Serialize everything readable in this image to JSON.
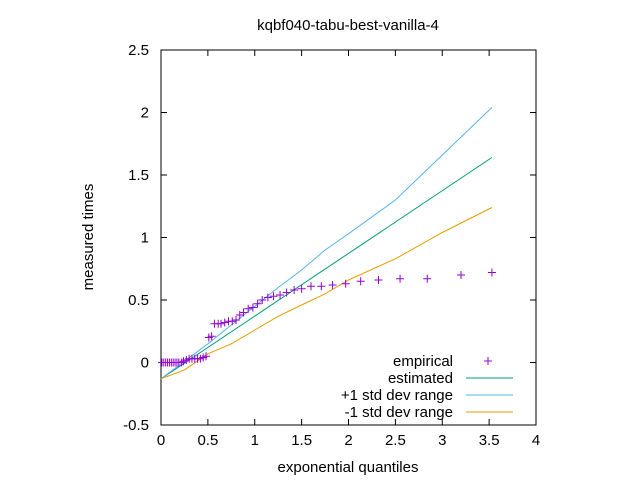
{
  "chart_data": {
    "type": "scatter",
    "title": "kqbf040-tabu-best-vanilla-4",
    "xlabel": "exponential quantiles",
    "ylabel": "measured times",
    "xlim": [
      0,
      4
    ],
    "ylim": [
      -0.5,
      2.5
    ],
    "x_ticks": [
      "0",
      "0.5",
      "1",
      "1.5",
      "2",
      "2.5",
      "3",
      "3.5",
      "4"
    ],
    "y_ticks": [
      "-0.5",
      "0",
      "0.5",
      "1",
      "1.5",
      "2",
      "2.5"
    ],
    "grid": false,
    "legend_position": "bottom-right",
    "series": [
      {
        "name": "empirical",
        "style": "points",
        "color": "#9400d3",
        "points": [
          [
            0.01,
            0.0
          ],
          [
            0.03,
            0.0
          ],
          [
            0.05,
            0.0
          ],
          [
            0.07,
            0.0
          ],
          [
            0.09,
            0.0
          ],
          [
            0.11,
            0.0
          ],
          [
            0.13,
            0.0
          ],
          [
            0.15,
            0.0
          ],
          [
            0.17,
            0.0
          ],
          [
            0.19,
            0.0
          ],
          [
            0.22,
            0.0
          ],
          [
            0.24,
            0.01
          ],
          [
            0.27,
            0.02
          ],
          [
            0.3,
            0.03
          ],
          [
            0.33,
            0.03
          ],
          [
            0.36,
            0.03
          ],
          [
            0.39,
            0.03
          ],
          [
            0.42,
            0.03
          ],
          [
            0.45,
            0.04
          ],
          [
            0.48,
            0.05
          ],
          [
            0.51,
            0.2
          ],
          [
            0.54,
            0.21
          ],
          [
            0.57,
            0.31
          ],
          [
            0.61,
            0.31
          ],
          [
            0.64,
            0.31
          ],
          [
            0.68,
            0.32
          ],
          [
            0.72,
            0.33
          ],
          [
            0.76,
            0.33
          ],
          [
            0.8,
            0.34
          ],
          [
            0.84,
            0.38
          ],
          [
            0.88,
            0.4
          ],
          [
            0.93,
            0.43
          ],
          [
            0.98,
            0.44
          ],
          [
            1.03,
            0.47
          ],
          [
            1.08,
            0.5
          ],
          [
            1.14,
            0.52
          ],
          [
            1.2,
            0.53
          ],
          [
            1.27,
            0.54
          ],
          [
            1.34,
            0.56
          ],
          [
            1.42,
            0.58
          ],
          [
            1.5,
            0.59
          ],
          [
            1.6,
            0.61
          ],
          [
            1.71,
            0.61
          ],
          [
            1.83,
            0.62
          ],
          [
            1.97,
            0.63
          ],
          [
            2.13,
            0.65
          ],
          [
            2.32,
            0.66
          ],
          [
            2.55,
            0.67
          ],
          [
            2.84,
            0.67
          ],
          [
            3.2,
            0.7
          ],
          [
            3.53,
            0.72
          ]
        ]
      },
      {
        "name": "estimated",
        "style": "line",
        "color": "#009e73",
        "points": [
          [
            0,
            -0.13
          ],
          [
            3.53,
            1.64
          ]
        ]
      },
      {
        "name": "+1 std dev range",
        "style": "line",
        "color": "#56b4e9",
        "points": [
          [
            0,
            -0.13
          ],
          [
            0.25,
            0.01
          ],
          [
            0.5,
            0.15
          ],
          [
            0.75,
            0.3
          ],
          [
            1.0,
            0.45
          ],
          [
            1.25,
            0.6
          ],
          [
            1.5,
            0.74
          ],
          [
            1.75,
            0.9
          ],
          [
            2.0,
            1.03
          ],
          [
            2.5,
            1.3
          ],
          [
            3.0,
            1.66
          ],
          [
            3.53,
            2.04
          ]
        ]
      },
      {
        "name": "-1 std dev range",
        "style": "line",
        "color": "#e69f00",
        "points": [
          [
            0,
            -0.13
          ],
          [
            0.25,
            -0.06
          ],
          [
            0.5,
            0.07
          ],
          [
            0.75,
            0.15
          ],
          [
            1.0,
            0.26
          ],
          [
            1.25,
            0.37
          ],
          [
            1.5,
            0.46
          ],
          [
            1.75,
            0.55
          ],
          [
            2.0,
            0.66
          ],
          [
            2.5,
            0.83
          ],
          [
            3.0,
            1.04
          ],
          [
            3.53,
            1.24
          ]
        ]
      }
    ]
  }
}
